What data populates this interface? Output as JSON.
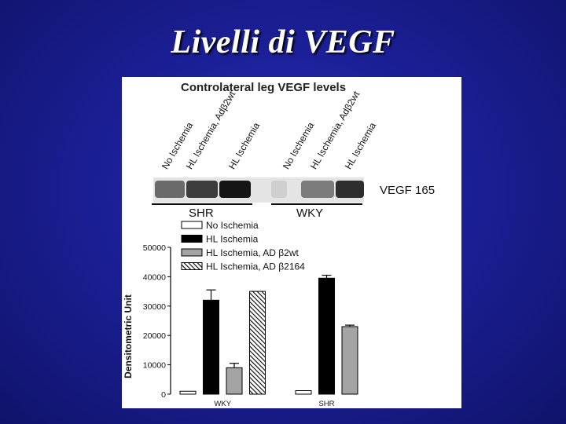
{
  "slide": {
    "title": "Livelli di VEGF"
  },
  "blot": {
    "title": "Controlateral leg VEGF levels",
    "lanes": [
      "No Ischemia",
      "HL Ischemia, Adβ2wt",
      "HL Ischemia",
      "No Ischemia",
      "HL Ischemia, Adβ2wt",
      "HL Ischemia"
    ],
    "band_label": "VEGF 165",
    "groups": [
      "SHR",
      "WKY"
    ]
  },
  "chart_data": {
    "type": "bar",
    "ylabel": "Densitometric Unit",
    "xlabel": "",
    "ylim": [
      0,
      50000
    ],
    "yticks": [
      "0",
      "10000",
      "20000",
      "30000",
      "40000",
      "50000"
    ],
    "categories": [
      "WKY",
      "SHR"
    ],
    "legend_position": "top-left",
    "series": [
      {
        "name": "No Ischemia",
        "values": [
          1000,
          1200
        ],
        "errors": [
          0,
          0
        ],
        "fill": "white"
      },
      {
        "name": "HL Ischemia",
        "values": [
          32000,
          39500
        ],
        "errors": [
          3500,
          1000
        ],
        "fill": "black"
      },
      {
        "name": "HL Ischemia, AD β2wt",
        "values": [
          9000,
          23000
        ],
        "errors": [
          1500,
          500
        ],
        "fill": "gray"
      },
      {
        "name": "HL Ischemia, AD β2164",
        "values": [
          35000,
          null
        ],
        "errors": [
          0,
          0
        ],
        "fill": "hatch"
      }
    ]
  }
}
